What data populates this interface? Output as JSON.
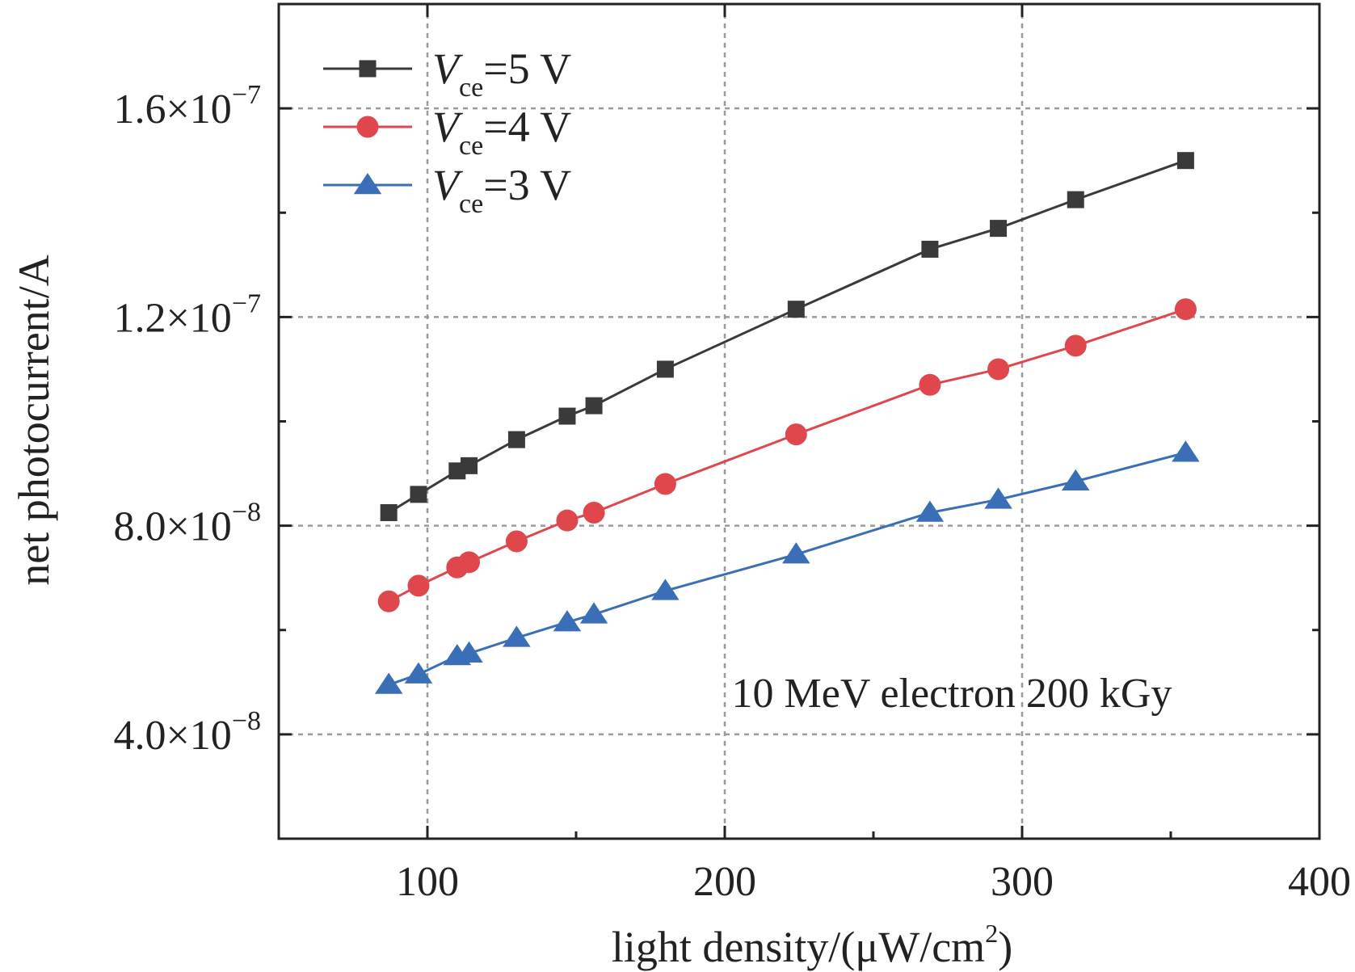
{
  "chart_data": {
    "type": "line",
    "title": "",
    "xlabel": "light density/(μW/cm²)",
    "xlabel_main": "light density/(μW/cm",
    "xlabel_sup": "2",
    "xlabel_tail": ")",
    "ylabel": "net photocurrent/A",
    "xlim": [
      50,
      400
    ],
    "ylim": [
      2e-08,
      1.8e-07
    ],
    "x_ticks": [
      {
        "value": 100,
        "label": "100"
      },
      {
        "value": 200,
        "label": "200"
      },
      {
        "value": 300,
        "label": "300"
      },
      {
        "value": 400,
        "label": "400"
      }
    ],
    "y_ticks": [
      {
        "value": 4e-08,
        "mantissa": "4.0×10",
        "exponent": "−8"
      },
      {
        "value": 8e-08,
        "mantissa": "8.0×10",
        "exponent": "−8"
      },
      {
        "value": 1.2e-07,
        "mantissa": "1.2×10",
        "exponent": "−7"
      },
      {
        "value": 1.6e-07,
        "mantissa": "1.6×10",
        "exponent": "−7"
      }
    ],
    "grid": true,
    "legend_position": "top-left",
    "annotation": "10 MeV electron 200 kGy",
    "x": [
      87,
      97,
      110,
      114,
      130,
      147,
      156,
      180,
      224,
      269,
      292,
      318,
      355
    ],
    "series": [
      {
        "name": "Vce=5 V",
        "legend_symbol": "V",
        "legend_sub": "ce",
        "legend_value": "=5 V",
        "marker": "square",
        "color": "#3a3a3a",
        "values": [
          8.25e-08,
          8.6e-08,
          9.05e-08,
          9.15e-08,
          9.65e-08,
          1.01e-07,
          1.03e-07,
          1.1e-07,
          1.215e-07,
          1.33e-07,
          1.37e-07,
          1.425e-07,
          1.5e-07
        ]
      },
      {
        "name": "Vce=4 V",
        "legend_symbol": "V",
        "legend_sub": "ce",
        "legend_value": "=4 V",
        "marker": "circle",
        "color": "#e0474c",
        "values": [
          6.55e-08,
          6.85e-08,
          7.2e-08,
          7.3e-08,
          7.7e-08,
          8.1e-08,
          8.25e-08,
          8.8e-08,
          9.75e-08,
          1.07e-07,
          1.1e-07,
          1.145e-07,
          1.215e-07
        ]
      },
      {
        "name": "Vce=3 V",
        "legend_symbol": "V",
        "legend_sub": "ce",
        "legend_value": "=3 V",
        "marker": "triangle",
        "color": "#3a6fb8",
        "values": [
          4.95e-08,
          5.15e-08,
          5.5e-08,
          5.55e-08,
          5.85e-08,
          6.15e-08,
          6.3e-08,
          6.75e-08,
          7.45e-08,
          8.25e-08,
          8.5e-08,
          8.85e-08,
          9.4e-08
        ]
      }
    ]
  }
}
